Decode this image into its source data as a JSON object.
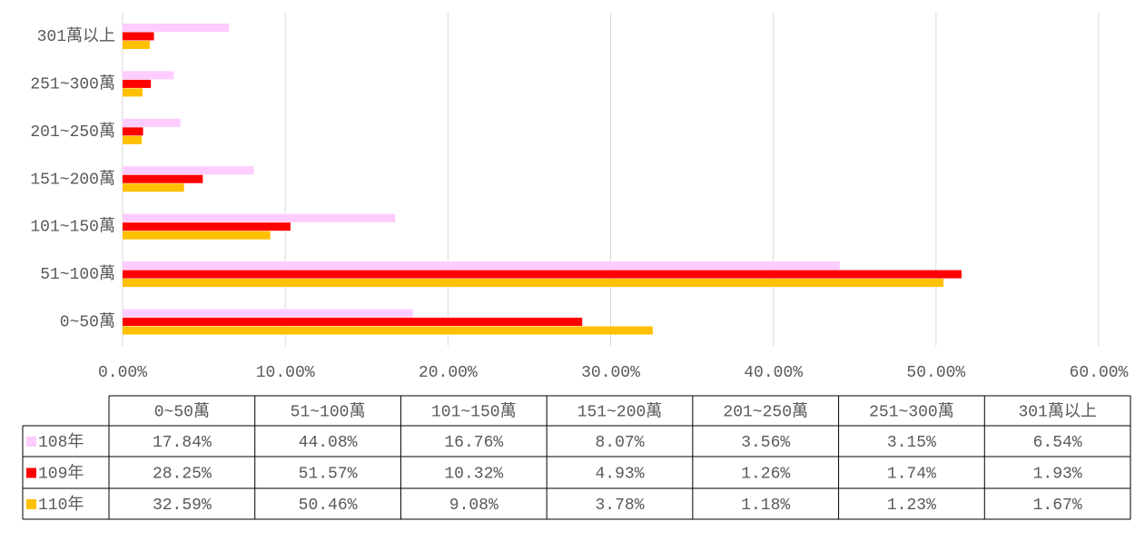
{
  "chart_data": {
    "type": "hbar",
    "categories": [
      "0~50萬",
      "51~100萬",
      "101~150萬",
      "151~200萬",
      "201~250萬",
      "251~300萬",
      "301萬以上"
    ],
    "series": [
      {
        "name": "108年",
        "color": "#ffccff",
        "values": [
          17.84,
          44.08,
          16.76,
          8.07,
          3.56,
          3.15,
          6.54
        ],
        "value_labels": [
          "17.84%",
          "44.08%",
          "16.76%",
          "8.07%",
          "3.56%",
          "3.15%",
          "6.54%"
        ]
      },
      {
        "name": "109年",
        "color": "#ff0000",
        "values": [
          28.25,
          51.57,
          10.32,
          4.93,
          1.26,
          1.74,
          1.93
        ],
        "value_labels": [
          "28.25%",
          "51.57%",
          "10.32%",
          "4.93%",
          "1.26%",
          "1.74%",
          "1.93%"
        ]
      },
      {
        "name": "110年",
        "color": "#ffc000",
        "values": [
          32.59,
          50.46,
          9.08,
          3.78,
          1.18,
          1.23,
          1.67
        ],
        "value_labels": [
          "32.59%",
          "50.46%",
          "9.08%",
          "3.78%",
          "1.18%",
          "1.23%",
          "1.67%"
        ]
      }
    ],
    "xlim": [
      0,
      60
    ],
    "xticks": [
      {
        "value": 0,
        "label": "0.00%"
      },
      {
        "value": 10,
        "label": "10.00%"
      },
      {
        "value": 20,
        "label": "20.00%"
      },
      {
        "value": 30,
        "label": "30.00%"
      },
      {
        "value": 40,
        "label": "40.00%"
      },
      {
        "value": 50,
        "label": "50.00%"
      },
      {
        "value": 60,
        "label": "60.00%"
      }
    ],
    "grid": true
  }
}
